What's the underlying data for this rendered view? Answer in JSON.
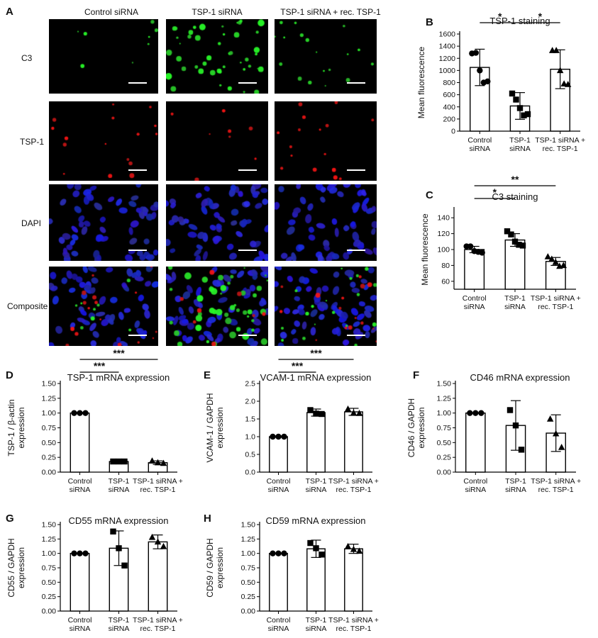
{
  "micrograph": {
    "panel_letter": "A",
    "columns": [
      "Control siRNA",
      "TSP-1 siRNA",
      "TSP-1 siRNA + rec. TSP-1"
    ],
    "rows": [
      "C3",
      "TSP-1",
      "DAPI",
      "Composite"
    ]
  },
  "chart_data": [
    {
      "id": "B",
      "panel": "B",
      "type": "bar",
      "title": "TSP-1 staining",
      "ylabel": "Mean fluorescence",
      "xlabel": "",
      "categories": [
        [
          "Control",
          "siRNA"
        ],
        [
          "TSP-1",
          "siRNA"
        ],
        [
          "TSP-1 siRNA +",
          "rec. TSP-1"
        ]
      ],
      "ylim": [
        0,
        1600
      ],
      "yticks": [
        0,
        200,
        400,
        600,
        800,
        1000,
        1200,
        1400,
        1600
      ],
      "markers": [
        "circle",
        "square",
        "triangle"
      ],
      "values": [
        1050,
        415,
        1020
      ],
      "errors": [
        300,
        220,
        320
      ],
      "points": [
        [
          1280,
          1290,
          1000,
          800,
          820
        ],
        [
          620,
          520,
          380,
          260,
          280
        ],
        [
          1330,
          1330,
          1000,
          780,
          770
        ]
      ],
      "sig": [
        {
          "from": 0,
          "to": 1,
          "label": "*",
          "level": 1
        },
        {
          "from": 1,
          "to": 2,
          "label": "*",
          "level": 1
        }
      ]
    },
    {
      "id": "C",
      "panel": "C",
      "type": "bar",
      "title": "C3 staining",
      "ylabel": "Mean fluorescence",
      "xlabel": "",
      "categories": [
        [
          "Control",
          "siRNA"
        ],
        [
          "TSP-1",
          "siRNA"
        ],
        [
          "TSP-1 siRNA +",
          "rec. TSP-1"
        ]
      ],
      "ylim": [
        50,
        150
      ],
      "yticks": [
        60,
        80,
        100,
        120,
        140
      ],
      "ytick_labels": [
        "60",
        "80",
        "100",
        "120",
        "140"
      ],
      "markers": [
        "circle",
        "square",
        "triangle"
      ],
      "values": [
        100,
        112,
        85
      ],
      "errors": [
        4,
        8,
        5
      ],
      "points": [
        [
          104,
          104,
          98,
          97,
          96
        ],
        [
          123,
          119,
          110,
          106,
          105
        ],
        [
          91,
          88,
          84,
          79,
          80
        ]
      ],
      "sig": [
        {
          "from": 0,
          "to": 1,
          "label": "*",
          "level": 1
        },
        {
          "from": 0,
          "to": 2,
          "label": "**",
          "level": 2
        }
      ]
    },
    {
      "id": "D",
      "panel": "D",
      "type": "bar",
      "title": "TSP-1 mRNA expression",
      "ylabel": "TSP-1 / β-actin expression",
      "xlabel": "",
      "categories": [
        [
          "Control",
          "siRNA"
        ],
        [
          "TSP-1",
          "siRNA"
        ],
        [
          "TSP-1 siRNA +",
          "rec. TSP-1"
        ]
      ],
      "ylim": [
        0,
        1.5
      ],
      "yticks": [
        0,
        0.25,
        0.5,
        0.75,
        1.0,
        1.25,
        1.5
      ],
      "ytick_labels": [
        "0.00",
        "0.25",
        "0.50",
        "0.75",
        "1.00",
        "1.25",
        "1.50"
      ],
      "markers": [
        "circle",
        "square",
        "triangle"
      ],
      "values": [
        1.0,
        0.18,
        0.16
      ],
      "errors": [
        0.01,
        0.02,
        0.03
      ],
      "points": [
        [
          1.0,
          1.0,
          1.0
        ],
        [
          0.18,
          0.18,
          0.18
        ],
        [
          0.19,
          0.16,
          0.15
        ]
      ],
      "sig": [
        {
          "from": 0,
          "to": 1,
          "label": "***",
          "level": 1
        },
        {
          "from": 0,
          "to": 2,
          "label": "***",
          "level": 2
        }
      ]
    },
    {
      "id": "E",
      "panel": "E",
      "type": "bar",
      "title": "VCAM-1 mRNA expression",
      "ylabel": "VCAM-1 / GAPDH expression",
      "xlabel": "",
      "categories": [
        [
          "Control",
          "siRNA"
        ],
        [
          "TSP-1",
          "siRNA"
        ],
        [
          "TSP-1 siRNA +",
          "rec. TSP-1"
        ]
      ],
      "ylim": [
        0,
        2.5
      ],
      "yticks": [
        0,
        0.5,
        1.0,
        1.5,
        2.0,
        2.5
      ],
      "ytick_labels": [
        "0.0",
        "0.5",
        "1.0",
        "1.5",
        "2.0",
        "2.5"
      ],
      "markers": [
        "circle",
        "square",
        "triangle"
      ],
      "values": [
        1.0,
        1.68,
        1.7
      ],
      "errors": [
        0.0,
        0.1,
        0.1
      ],
      "points": [
        [
          1.0,
          1.0,
          1.0
        ],
        [
          1.75,
          1.65,
          1.64
        ],
        [
          1.78,
          1.67,
          1.66
        ]
      ],
      "sig": [
        {
          "from": 0,
          "to": 1,
          "label": "***",
          "level": 1
        },
        {
          "from": 0,
          "to": 2,
          "label": "***",
          "level": 2
        }
      ]
    },
    {
      "id": "F",
      "panel": "F",
      "type": "bar",
      "title": "CD46 mRNA expression",
      "ylabel": "CD46 / GAPDH expression",
      "xlabel": "",
      "categories": [
        [
          "Control",
          "siRNA"
        ],
        [
          "TSP-1",
          "siRNA"
        ],
        [
          "TSP-1 siRNA +",
          "rec. TSP-1"
        ]
      ],
      "ylim": [
        0,
        1.5
      ],
      "yticks": [
        0,
        0.25,
        0.5,
        0.75,
        1.0,
        1.25,
        1.5
      ],
      "ytick_labels": [
        "0.00",
        "0.25",
        "0.50",
        "0.75",
        "1.00",
        "1.25",
        "1.50"
      ],
      "markers": [
        "circle",
        "square",
        "triangle"
      ],
      "values": [
        1.0,
        0.79,
        0.66
      ],
      "errors": [
        0.0,
        0.42,
        0.31
      ],
      "points": [
        [
          1.0,
          1.0,
          1.0
        ],
        [
          1.05,
          0.79,
          0.38
        ],
        [
          0.9,
          0.65,
          0.42
        ]
      ],
      "sig": []
    },
    {
      "id": "G",
      "panel": "G",
      "type": "bar",
      "title": "CD55 mRNA expression",
      "ylabel": "CD55 / GAPDH expression",
      "xlabel": "",
      "categories": [
        [
          "Control",
          "siRNA"
        ],
        [
          "TSP-1",
          "siRNA"
        ],
        [
          "TSP-1 siRNA +",
          "rec. TSP-1"
        ]
      ],
      "ylim": [
        0,
        1.5
      ],
      "yticks": [
        0,
        0.25,
        0.5,
        0.75,
        1.0,
        1.25,
        1.5
      ],
      "ytick_labels": [
        "0.00",
        "0.25",
        "0.50",
        "0.75",
        "1.00",
        "1.25",
        "1.50"
      ],
      "markers": [
        "circle",
        "square",
        "triangle"
      ],
      "values": [
        1.0,
        1.09,
        1.2
      ],
      "errors": [
        0.0,
        0.3,
        0.12
      ],
      "points": [
        [
          1.0,
          1.0,
          1.0
        ],
        [
          1.38,
          1.09,
          0.79
        ],
        [
          1.28,
          1.2,
          1.12
        ]
      ],
      "sig": []
    },
    {
      "id": "H",
      "panel": "H",
      "type": "bar",
      "title": "CD59 mRNA expression",
      "ylabel": "CD59 / GAPDH expression",
      "xlabel": "",
      "categories": [
        [
          "Control",
          "siRNA"
        ],
        [
          "TSP-1",
          "siRNA"
        ],
        [
          "TSP-1 siRNA +",
          "rec. TSP-1"
        ]
      ],
      "ylim": [
        0,
        1.5
      ],
      "yticks": [
        0,
        0.25,
        0.5,
        0.75,
        1.0,
        1.25,
        1.5
      ],
      "ytick_labels": [
        "0.00",
        "0.25",
        "0.50",
        "0.75",
        "1.00",
        "1.25",
        "1.50"
      ],
      "markers": [
        "circle",
        "square",
        "triangle"
      ],
      "values": [
        1.0,
        1.08,
        1.08
      ],
      "errors": [
        0.0,
        0.15,
        0.08
      ],
      "points": [
        [
          1.0,
          1.0,
          1.0
        ],
        [
          1.18,
          1.09,
          0.98
        ],
        [
          1.12,
          1.07,
          1.04
        ]
      ],
      "sig": []
    }
  ]
}
